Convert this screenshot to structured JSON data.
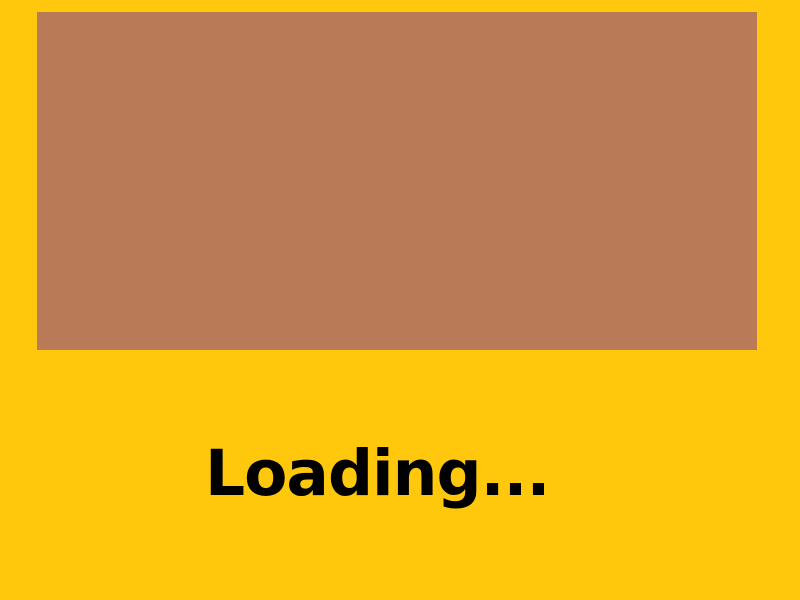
{
  "screen": {
    "background_color": "#FFC80C"
  },
  "banner": {
    "color": "#B97A57"
  },
  "status": {
    "loading_text": "Loading..."
  }
}
